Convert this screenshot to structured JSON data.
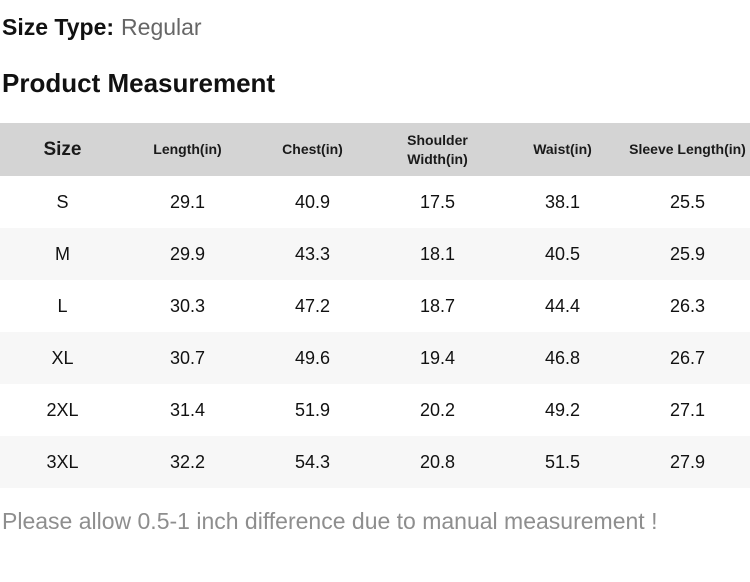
{
  "page": {
    "size_type_label": "Size Type:",
    "size_type_value": "Regular",
    "section_title": "Product Measurement",
    "note": "Please allow 0.5-1 inch difference due to manual measurement !"
  },
  "colors": {
    "header_row_bg": "#d4d4d4",
    "alt_row_bg": "#f7f7f7",
    "heading_text": "#111111",
    "size_type_value_gray": "#666666",
    "note_gray": "#8e8e8e"
  },
  "table": {
    "headers": [
      "Size",
      "Length(in)",
      "Chest(in)",
      "Shoulder Width(in)",
      "Waist(in)",
      "Sleeve Length(in)"
    ],
    "rows": [
      [
        "S",
        "29.1",
        "40.9",
        "17.5",
        "38.1",
        "25.5"
      ],
      [
        "M",
        "29.9",
        "43.3",
        "18.1",
        "40.5",
        "25.9"
      ],
      [
        "L",
        "30.3",
        "47.2",
        "18.7",
        "44.4",
        "26.3"
      ],
      [
        "XL",
        "30.7",
        "49.6",
        "19.4",
        "46.8",
        "26.7"
      ],
      [
        "2XL",
        "31.4",
        "51.9",
        "20.2",
        "49.2",
        "27.1"
      ],
      [
        "3XL",
        "32.2",
        "54.3",
        "20.8",
        "51.5",
        "27.9"
      ]
    ]
  }
}
